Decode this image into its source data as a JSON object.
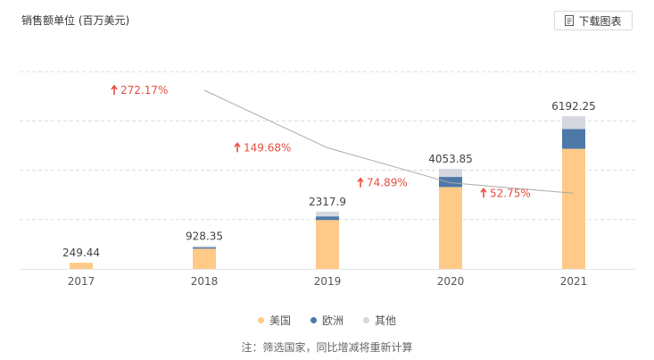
{
  "header": {
    "unit_label": "销售额单位 (百万美元)",
    "download_label": "下载图表",
    "download_icon": "document-icon"
  },
  "chart_data": {
    "type": "bar",
    "stacked": true,
    "categories": [
      "2017",
      "2018",
      "2019",
      "2020",
      "2021"
    ],
    "totals": [
      "249.44",
      "928.35",
      "2317.9",
      "4053.85",
      "6192.25"
    ],
    "series": [
      {
        "name": "美国",
        "color": "#ffc987",
        "values": [
          249.44,
          820,
          1980,
          3320,
          4870
        ]
      },
      {
        "name": "欧洲",
        "color": "#4d79a9",
        "values": [
          0,
          55,
          150,
          410,
          800
        ]
      },
      {
        "name": "其他",
        "color": "#d5d8df",
        "values": [
          0,
          53.35,
          187.9,
          323.85,
          522.25
        ]
      }
    ],
    "growth": {
      "labels": [
        "272.17%",
        "149.68%",
        "74.89%",
        "52.75%"
      ],
      "values": [
        272.17,
        149.68,
        74.89,
        52.75
      ],
      "color": "#e84e40",
      "line_color": "#aaaaaa"
    },
    "ylim": [
      0,
      8000
    ],
    "grid": true,
    "legend_position": "bottom"
  },
  "footer": {
    "note": "注：筛选国家，同比增减将重新计算"
  }
}
